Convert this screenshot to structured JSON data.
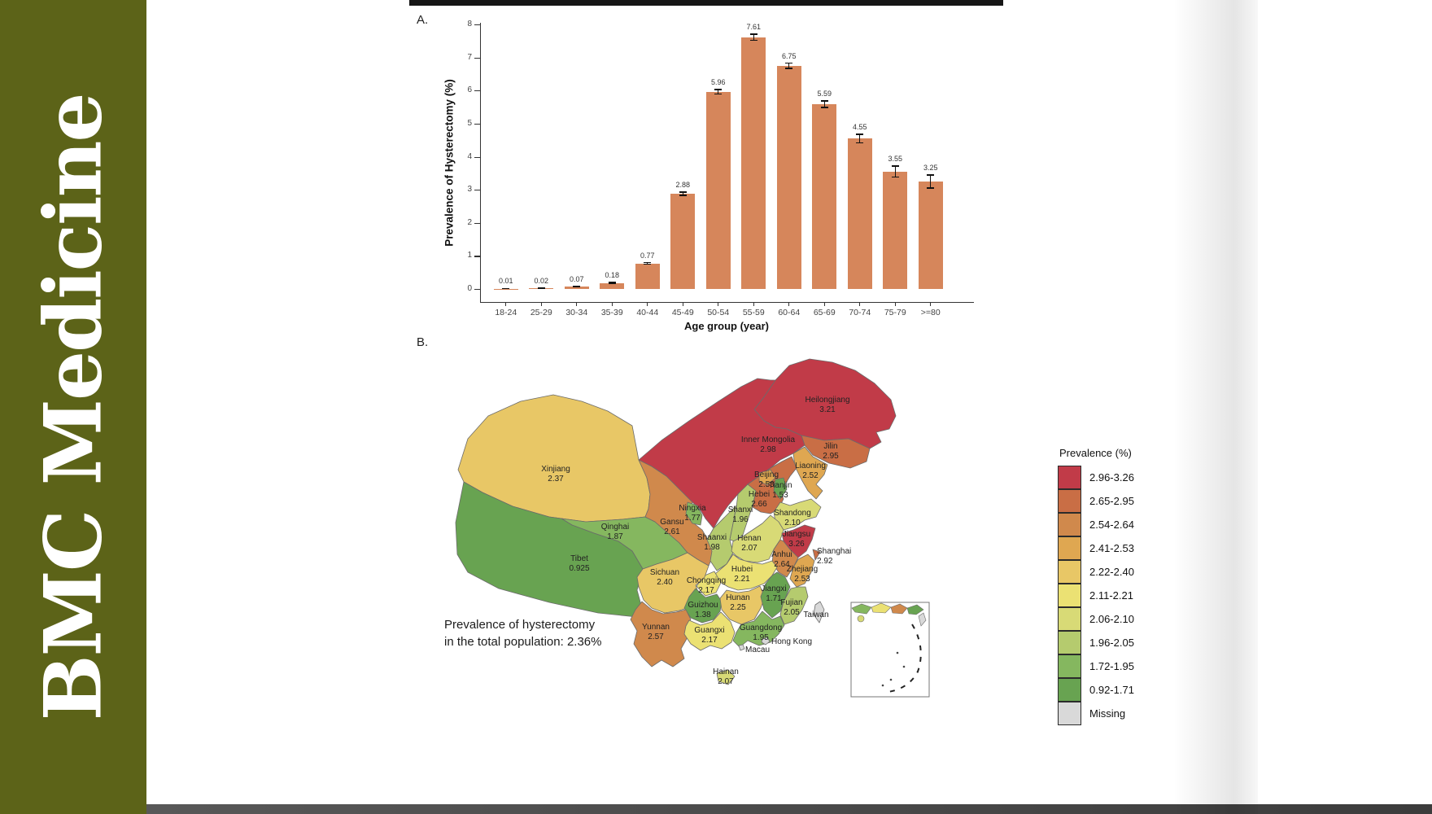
{
  "journal": "BMC Medicine",
  "chart_data": [
    {
      "type": "bar",
      "panel": "A.",
      "title": "",
      "xlabel": "Age group (year)",
      "ylabel": "Prevalence of Hysterectomy (%)",
      "categories": [
        "18-24",
        "25-29",
        "30-34",
        "35-39",
        "40-44",
        "45-49",
        "50-54",
        "55-59",
        "60-64",
        "65-69",
        "70-74",
        "75-79",
        ">=80"
      ],
      "values": [
        0.01,
        0.02,
        0.07,
        0.18,
        0.77,
        2.88,
        5.96,
        7.61,
        6.75,
        5.59,
        4.55,
        3.55,
        3.25
      ],
      "errors": [
        0.005,
        0.01,
        0.015,
        0.02,
        0.025,
        0.05,
        0.07,
        0.09,
        0.08,
        0.1,
        0.13,
        0.17,
        0.2
      ],
      "ylim": [
        0,
        8
      ],
      "yticks": [
        0,
        1,
        2,
        3,
        4,
        5,
        6,
        7,
        8
      ],
      "grid": false,
      "bar_color": "#d6865b"
    },
    {
      "type": "choropleth",
      "panel": "B.",
      "caption": "Prevalence of hysterectomy in the total population: 2.36%",
      "caption_line1": "Prevalence of hysterectomy",
      "caption_line2": "in the total population: 2.36%",
      "legend_title": "Prevalence (%)",
      "legend_position": "right",
      "bins": [
        {
          "label": "2.96-3.26",
          "color": "#c13b48"
        },
        {
          "label": "2.65-2.95",
          "color": "#c96e45"
        },
        {
          "label": "2.54-2.64",
          "color": "#d0894c"
        },
        {
          "label": "2.41-2.53",
          "color": "#dfa751"
        },
        {
          "label": "2.22-2.40",
          "color": "#e8c766"
        },
        {
          "label": "2.11-2.21",
          "color": "#ebe173"
        },
        {
          "label": "2.06-2.10",
          "color": "#d8da76"
        },
        {
          "label": "1.96-2.05",
          "color": "#b5cb6e"
        },
        {
          "label": "1.72-1.95",
          "color": "#85b75f"
        },
        {
          "label": "0.92-1.71",
          "color": "#68a351"
        },
        {
          "label": "Missing",
          "color": "#d9d9d9"
        }
      ],
      "regions": [
        {
          "name": "Heilongjiang",
          "value": "3.21",
          "bin": 0
        },
        {
          "name": "Jilin",
          "value": "2.95",
          "bin": 1
        },
        {
          "name": "Liaoning",
          "value": "2.52",
          "bin": 3
        },
        {
          "name": "Inner Mongolia",
          "value": "2.98",
          "bin": 0
        },
        {
          "name": "Xinjiang",
          "value": "2.37",
          "bin": 4
        },
        {
          "name": "Beijing",
          "value": "2.53",
          "bin": 3
        },
        {
          "name": "Tianjin",
          "value": "1.53",
          "bin": 9
        },
        {
          "name": "Hebei",
          "value": "2.66",
          "bin": 1
        },
        {
          "name": "Shanxi",
          "value": "1.96",
          "bin": 7
        },
        {
          "name": "Shandong",
          "value": "2.10",
          "bin": 6
        },
        {
          "name": "Qinghai",
          "value": "1.87",
          "bin": 8
        },
        {
          "name": "Gansu",
          "value": "2.61",
          "bin": 2
        },
        {
          "name": "Ningxia",
          "value": "1.77",
          "bin": 8
        },
        {
          "name": "Shaanxi",
          "value": "1.98",
          "bin": 7
        },
        {
          "name": "Henan",
          "value": "2.07",
          "bin": 6
        },
        {
          "name": "Jiangsu",
          "value": "3.26",
          "bin": 0
        },
        {
          "name": "Anhui",
          "value": "2.64",
          "bin": 2
        },
        {
          "name": "Shanghai",
          "value": "2.92",
          "bin": 1
        },
        {
          "name": "Zhejiang",
          "value": "2.53",
          "bin": 3
        },
        {
          "name": "Hubei",
          "value": "2.21",
          "bin": 5
        },
        {
          "name": "Chongqing",
          "value": "2.17",
          "bin": 5
        },
        {
          "name": "Sichuan",
          "value": "2.40",
          "bin": 4
        },
        {
          "name": "Tibet",
          "value": "0.925",
          "bin": 9
        },
        {
          "name": "Guizhou",
          "value": "1.38",
          "bin": 9
        },
        {
          "name": "Hunan",
          "value": "2.25",
          "bin": 4
        },
        {
          "name": "Jiangxi",
          "value": "1.71",
          "bin": 9
        },
        {
          "name": "Fujian",
          "value": "2.05",
          "bin": 7
        },
        {
          "name": "Yunnan",
          "value": "2.57",
          "bin": 2
        },
        {
          "name": "Guangxi",
          "value": "2.17",
          "bin": 5
        },
        {
          "name": "Guangdong",
          "value": "1.95",
          "bin": 8
        },
        {
          "name": "Hainan",
          "value": "2.07",
          "bin": 6
        },
        {
          "name": "Hong Kong",
          "value": null,
          "bin": 10
        },
        {
          "name": "Macau",
          "value": null,
          "bin": 10
        },
        {
          "name": "Taiwan",
          "value": null,
          "bin": 10
        }
      ]
    }
  ]
}
